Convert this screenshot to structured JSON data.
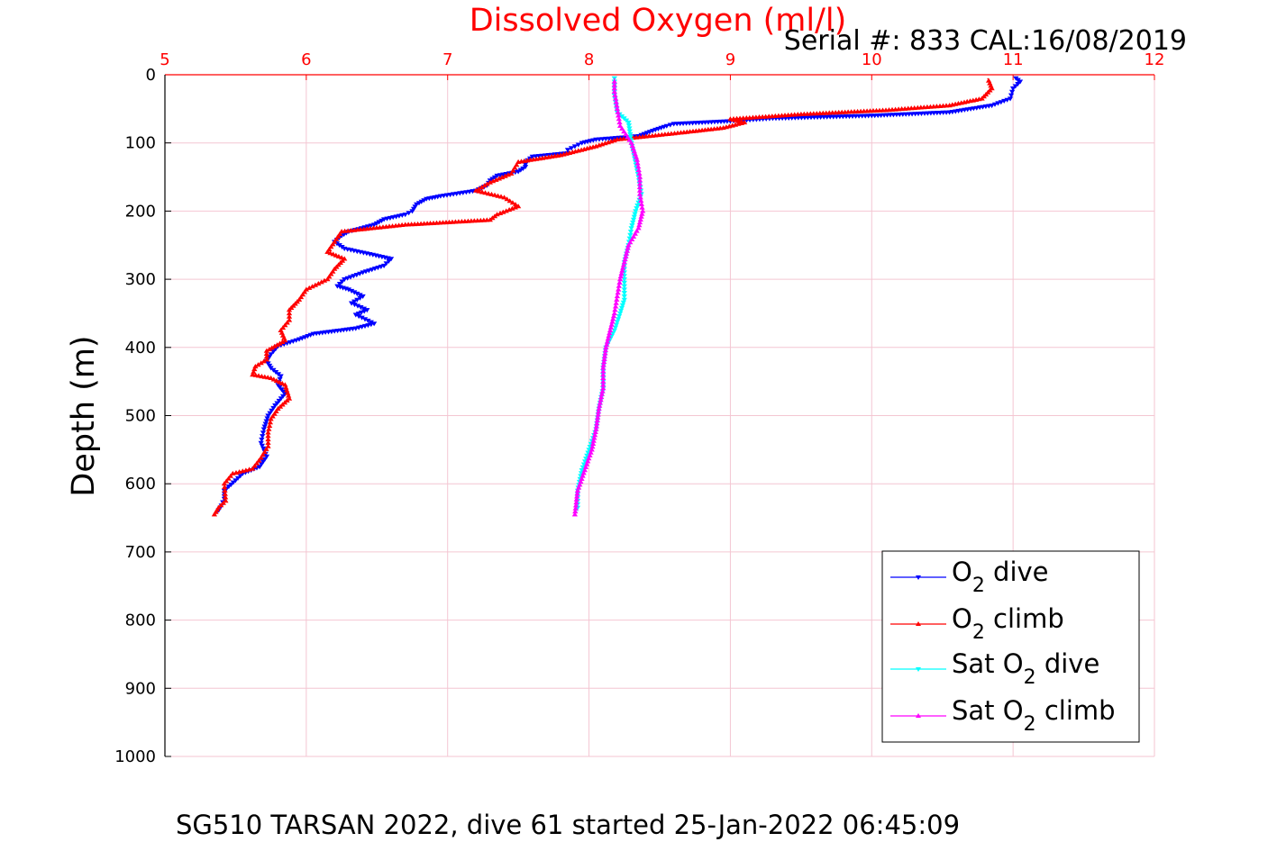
{
  "chart_data": {
    "type": "line",
    "title": "Dissolved Oxygen (ml/l)",
    "subtitle": "Serial #: 833  CAL:16/08/2019",
    "caption": "SG510 TARSAN 2022, dive 61 started 25-Jan-2022 06:45:09",
    "xlabel": "Dissolved Oxygen (ml/l)",
    "ylabel": "Depth (m)",
    "xlim": [
      5,
      12
    ],
    "ylim": [
      0,
      1000
    ],
    "y_reversed": true,
    "x_axis_position": "top",
    "xticks": [
      "5",
      "6",
      "7",
      "8",
      "9",
      "10",
      "11",
      "12"
    ],
    "yticks": [
      "0",
      "100",
      "200",
      "300",
      "400",
      "500",
      "600",
      "700",
      "800",
      "900",
      "1000"
    ],
    "grid": true,
    "legend_position": "bottom-right",
    "colors": {
      "title": "#ff0000",
      "xtick": "#ff0000",
      "grid": "#f4c6d2",
      "o2_dive": "#0000ff",
      "o2_climb": "#ff0000",
      "sat_dive": "#00ffff",
      "sat_climb": "#ff00ff"
    },
    "series": [
      {
        "key": "o2_dive",
        "name": "O2 dive",
        "legend_main": "O",
        "legend_sub": "2",
        "legend_suffix": " dive",
        "color": "#0000ff",
        "marker": "triangle-down",
        "points": [
          [
            11.02,
            5
          ],
          [
            11.05,
            10
          ],
          [
            11.0,
            20
          ],
          [
            10.98,
            35
          ],
          [
            10.85,
            45
          ],
          [
            10.55,
            55
          ],
          [
            10.0,
            60
          ],
          [
            9.3,
            64
          ],
          [
            9.0,
            68
          ],
          [
            8.6,
            72
          ],
          [
            8.55,
            75
          ],
          [
            8.45,
            82
          ],
          [
            8.35,
            90
          ],
          [
            8.05,
            95
          ],
          [
            7.95,
            100
          ],
          [
            7.9,
            105
          ],
          [
            7.85,
            110
          ],
          [
            7.85,
            115
          ],
          [
            7.6,
            120
          ],
          [
            7.55,
            128
          ],
          [
            7.55,
            135
          ],
          [
            7.5,
            142
          ],
          [
            7.35,
            148
          ],
          [
            7.3,
            155
          ],
          [
            7.28,
            162
          ],
          [
            7.2,
            170
          ],
          [
            6.95,
            178
          ],
          [
            6.85,
            182
          ],
          [
            6.78,
            190
          ],
          [
            6.75,
            200
          ],
          [
            6.7,
            205
          ],
          [
            6.55,
            212
          ],
          [
            6.48,
            220
          ],
          [
            6.3,
            230
          ],
          [
            6.25,
            236
          ],
          [
            6.2,
            245
          ],
          [
            6.27,
            255
          ],
          [
            6.45,
            263
          ],
          [
            6.6,
            270
          ],
          [
            6.55,
            280
          ],
          [
            6.4,
            290
          ],
          [
            6.27,
            300
          ],
          [
            6.22,
            310
          ],
          [
            6.3,
            315
          ],
          [
            6.4,
            325
          ],
          [
            6.32,
            335
          ],
          [
            6.43,
            345
          ],
          [
            6.35,
            352
          ],
          [
            6.48,
            365
          ],
          [
            6.35,
            372
          ],
          [
            6.05,
            380
          ],
          [
            5.95,
            388
          ],
          [
            5.8,
            398
          ],
          [
            5.75,
            410
          ],
          [
            5.72,
            420
          ],
          [
            5.75,
            430
          ],
          [
            5.82,
            442
          ],
          [
            5.8,
            455
          ],
          [
            5.85,
            468
          ],
          [
            5.78,
            485
          ],
          [
            5.73,
            500
          ],
          [
            5.7,
            520
          ],
          [
            5.68,
            540
          ],
          [
            5.72,
            560
          ],
          [
            5.67,
            575
          ],
          [
            5.55,
            585
          ],
          [
            5.5,
            595
          ],
          [
            5.42,
            610
          ],
          [
            5.42,
            622
          ],
          [
            5.4,
            632
          ],
          [
            5.37,
            642
          ]
        ]
      },
      {
        "key": "o2_climb",
        "name": "O2 climb",
        "legend_main": "O",
        "legend_sub": "2",
        "legend_suffix": " climb",
        "color": "#ff0000",
        "marker": "triangle-up",
        "points": [
          [
            5.35,
            645
          ],
          [
            5.38,
            635
          ],
          [
            5.43,
            625
          ],
          [
            5.42,
            600
          ],
          [
            5.48,
            585
          ],
          [
            5.62,
            578
          ],
          [
            5.68,
            562
          ],
          [
            5.73,
            545
          ],
          [
            5.73,
            525
          ],
          [
            5.75,
            505
          ],
          [
            5.8,
            490
          ],
          [
            5.88,
            475
          ],
          [
            5.85,
            455
          ],
          [
            5.75,
            445
          ],
          [
            5.62,
            440
          ],
          [
            5.64,
            428
          ],
          [
            5.72,
            418
          ],
          [
            5.72,
            405
          ],
          [
            5.85,
            390
          ],
          [
            5.82,
            375
          ],
          [
            5.88,
            360
          ],
          [
            5.88,
            345
          ],
          [
            5.95,
            330
          ],
          [
            6.0,
            315
          ],
          [
            6.15,
            300
          ],
          [
            6.2,
            285
          ],
          [
            6.27,
            270
          ],
          [
            6.15,
            260
          ],
          [
            6.2,
            245
          ],
          [
            6.25,
            230
          ],
          [
            6.7,
            220
          ],
          [
            7.3,
            213
          ],
          [
            7.35,
            205
          ],
          [
            7.5,
            193
          ],
          [
            7.4,
            180
          ],
          [
            7.2,
            170
          ],
          [
            7.3,
            158
          ],
          [
            7.45,
            145
          ],
          [
            7.5,
            128
          ],
          [
            7.8,
            118
          ],
          [
            8.05,
            105
          ],
          [
            8.2,
            95
          ],
          [
            8.65,
            85
          ],
          [
            8.95,
            78
          ],
          [
            9.1,
            70
          ],
          [
            9.0,
            65
          ],
          [
            9.5,
            58
          ],
          [
            10.1,
            52
          ],
          [
            10.55,
            45
          ],
          [
            10.78,
            35
          ],
          [
            10.85,
            20
          ],
          [
            10.82,
            5
          ]
        ]
      },
      {
        "key": "sat_dive",
        "name": "Sat O2 dive",
        "legend_main": "Sat O",
        "legend_sub": "2",
        "legend_suffix": " dive",
        "color": "#00ffff",
        "marker": "triangle-down",
        "points": [
          [
            8.18,
            5
          ],
          [
            8.18,
            30
          ],
          [
            8.2,
            55
          ],
          [
            8.28,
            70
          ],
          [
            8.3,
            100
          ],
          [
            8.35,
            150
          ],
          [
            8.37,
            175
          ],
          [
            8.33,
            200
          ],
          [
            8.3,
            225
          ],
          [
            8.28,
            250
          ],
          [
            8.25,
            275
          ],
          [
            8.25,
            300
          ],
          [
            8.25,
            330
          ],
          [
            8.22,
            350
          ],
          [
            8.18,
            375
          ],
          [
            8.12,
            400
          ],
          [
            8.1,
            430
          ],
          [
            8.1,
            460
          ],
          [
            8.07,
            490
          ],
          [
            8.05,
            520
          ],
          [
            8.0,
            550
          ],
          [
            7.95,
            580
          ],
          [
            7.92,
            610
          ],
          [
            7.92,
            640
          ]
        ]
      },
      {
        "key": "sat_climb",
        "name": "Sat O2 climb",
        "legend_main": "Sat O",
        "legend_sub": "2",
        "legend_suffix": " climb",
        "color": "#ff00ff",
        "marker": "triangle-up",
        "points": [
          [
            7.9,
            645
          ],
          [
            7.92,
            610
          ],
          [
            7.97,
            580
          ],
          [
            8.02,
            550
          ],
          [
            8.05,
            520
          ],
          [
            8.07,
            490
          ],
          [
            8.1,
            460
          ],
          [
            8.1,
            430
          ],
          [
            8.12,
            400
          ],
          [
            8.15,
            375
          ],
          [
            8.18,
            350
          ],
          [
            8.2,
            325
          ],
          [
            8.22,
            300
          ],
          [
            8.25,
            275
          ],
          [
            8.28,
            250
          ],
          [
            8.35,
            225
          ],
          [
            8.38,
            200
          ],
          [
            8.36,
            175
          ],
          [
            8.36,
            150
          ],
          [
            8.34,
            125
          ],
          [
            8.3,
            100
          ],
          [
            8.22,
            75
          ],
          [
            8.2,
            50
          ],
          [
            8.18,
            25
          ],
          [
            8.18,
            5
          ]
        ]
      }
    ]
  }
}
